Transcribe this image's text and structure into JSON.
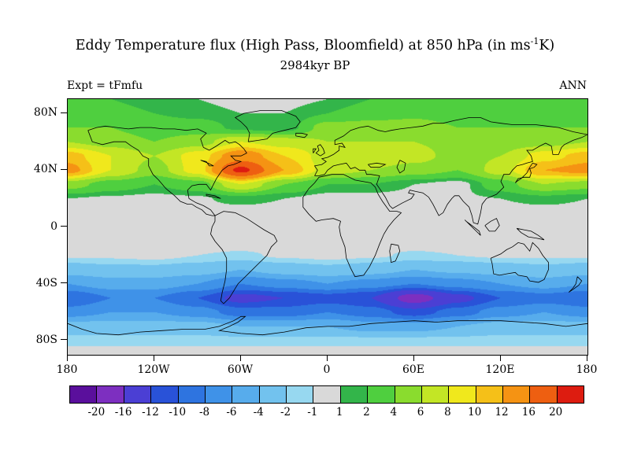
{
  "header": {
    "title_prefix": "Eddy Temperature flux (High Pass, Bloomfield) at 850 hPa (in ms",
    "title_sup": "-1",
    "title_suffix": "K)",
    "subtitle": "2984kyr BP",
    "expt_label": "Expt = tFmfu",
    "season_label": "ANN"
  },
  "chart_data": {
    "type": "heatmap",
    "projection": "equirectangular",
    "title": "Eddy Temperature flux (High Pass, Bloomfield) at 850 hPa (in ms-1 K)",
    "subtitle": "2984kyr BP",
    "annotations": [
      "Expt = tFmfu",
      "ANN"
    ],
    "lon_range": [
      -180,
      180
    ],
    "lat_range": [
      -90,
      90
    ],
    "lat_ticks": [
      {
        "value": 80,
        "label": "80N"
      },
      {
        "value": 40,
        "label": "40N"
      },
      {
        "value": 0,
        "label": "0"
      },
      {
        "value": -40,
        "label": "40S"
      },
      {
        "value": -80,
        "label": "80S"
      }
    ],
    "lon_ticks": [
      {
        "value": -180,
        "label": "180"
      },
      {
        "value": -120,
        "label": "120W"
      },
      {
        "value": -60,
        "label": "60W"
      },
      {
        "value": 0,
        "label": "0"
      },
      {
        "value": 60,
        "label": "60E"
      },
      {
        "value": 120,
        "label": "120E"
      },
      {
        "value": 180,
        "label": "180"
      }
    ],
    "levels": [
      -20,
      -16,
      -12,
      -10,
      -8,
      -6,
      -4,
      -2,
      -1,
      1,
      2,
      4,
      6,
      8,
      10,
      12,
      16,
      20
    ],
    "colors": [
      "#5a0f9c",
      "#7d2fc0",
      "#4b3fd4",
      "#2952d8",
      "#2e74e0",
      "#3f92e8",
      "#57acec",
      "#72c2ee",
      "#97d8f0",
      "#d9d9d9",
      "#33b54a",
      "#4fcf3f",
      "#8adc2e",
      "#c3e625",
      "#f0e81c",
      "#f5c018",
      "#f59313",
      "#ee5f11",
      "#dd1c10"
    ],
    "colorbar_labels": [
      "-20",
      "-16",
      "-12",
      "-10",
      "-8",
      "-6",
      "-4",
      "-2",
      "-1",
      "1",
      "2",
      "4",
      "6",
      "8",
      "10",
      "12",
      "16",
      "20"
    ],
    "grid": {
      "lats": [
        90,
        80,
        70,
        60,
        50,
        40,
        30,
        20,
        10,
        0,
        -10,
        -20,
        -30,
        -40,
        -50,
        -60,
        -70,
        -80,
        -90
      ],
      "lons": [
        -180,
        -150,
        -120,
        -90,
        -60,
        -30,
        0,
        30,
        60,
        90,
        120,
        150,
        180
      ],
      "values": [
        [
          2,
          2,
          1.5,
          1,
          0.5,
          0.5,
          1,
          2,
          2,
          2,
          2,
          2,
          2
        ],
        [
          3,
          2.5,
          2,
          1.5,
          1,
          1,
          2,
          3,
          3.5,
          3,
          3,
          3,
          3
        ],
        [
          4,
          4,
          3,
          3,
          1.5,
          1,
          5,
          5,
          5,
          4,
          4,
          4,
          4
        ],
        [
          6,
          5,
          4,
          5,
          8,
          7,
          6,
          6,
          6,
          5,
          5,
          5,
          6
        ],
        [
          11,
          8,
          6,
          9,
          14,
          10,
          7,
          8,
          7,
          5,
          6,
          9,
          11
        ],
        [
          13,
          8,
          5,
          9,
          21,
          12,
          7,
          6,
          5,
          4,
          7,
          12,
          13
        ],
        [
          5,
          3,
          2,
          3,
          8,
          4,
          2,
          2,
          1,
          0.5,
          3,
          6,
          5
        ],
        [
          1,
          0.8,
          0.6,
          0.8,
          1.5,
          1,
          0.5,
          0.4,
          0.5,
          0.8,
          1,
          1.5,
          1
        ],
        [
          0.3,
          0.2,
          0.2,
          0.3,
          0.3,
          0.3,
          0.2,
          0.2,
          0.2,
          0.3,
          0.3,
          0.3,
          0.3
        ],
        [
          0,
          0,
          0,
          0,
          0,
          0,
          0,
          0,
          0,
          0,
          0,
          0,
          0
        ],
        [
          -0.3,
          -0.3,
          -0.3,
          -0.3,
          -0.3,
          -0.3,
          -0.3,
          -0.3,
          -0.3,
          -0.3,
          -0.3,
          -0.3,
          -0.3
        ],
        [
          -0.8,
          -0.8,
          -0.6,
          -1,
          -1.2,
          -0.8,
          -0.6,
          -0.8,
          -1.2,
          -1,
          -0.8,
          -0.8,
          -0.8
        ],
        [
          -3,
          -2.5,
          -2.5,
          -3,
          -4,
          -3,
          -2.5,
          -3,
          -4,
          -3.5,
          -3,
          -2.5,
          -3
        ],
        [
          -6,
          -5,
          -5,
          -6,
          -8,
          -7,
          -6,
          -7,
          -8,
          -7,
          -6,
          -5,
          -6
        ],
        [
          -10,
          -8,
          -8,
          -10,
          -13,
          -12,
          -11,
          -12,
          -18,
          -13,
          -10,
          -9,
          -10
        ],
        [
          -7,
          -6,
          -6,
          -7,
          -9,
          -9,
          -8,
          -9,
          -11,
          -9,
          -7,
          -6,
          -7
        ],
        [
          -3,
          -3,
          -3,
          -3,
          -4,
          -4,
          -4,
          -5,
          -5,
          -4,
          -3,
          -3,
          -3
        ],
        [
          -1.5,
          -1.5,
          -1.5,
          -1.5,
          -1.5,
          -1.5,
          -1.5,
          -1.5,
          -1.5,
          -1.5,
          -1.5,
          -1.5,
          -1.5
        ],
        [
          0,
          0,
          0,
          0,
          0,
          0,
          0,
          0,
          0,
          0,
          0,
          0,
          0
        ]
      ]
    }
  }
}
